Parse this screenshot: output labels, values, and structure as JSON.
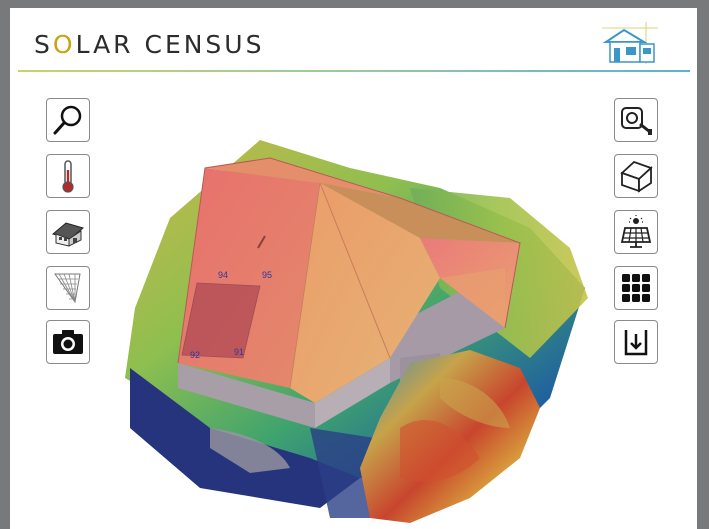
{
  "app": {
    "brand_part1": "S",
    "brand_o": "O",
    "brand_part2": "LAR CENSUS"
  },
  "left_tools": [
    {
      "name": "search-tool-button",
      "icon": "magnifier-icon"
    },
    {
      "name": "thermometer-tool-button",
      "icon": "thermometer-icon"
    },
    {
      "name": "house-3d-tool-button",
      "icon": "house-icon"
    },
    {
      "name": "net-tool-button",
      "icon": "net-icon"
    },
    {
      "name": "camera-tool-button",
      "icon": "camera-icon"
    }
  ],
  "right_tools": [
    {
      "name": "tape-measure-button",
      "icon": "tape-measure-icon"
    },
    {
      "name": "roof-outline-button",
      "icon": "roof-outline-icon"
    },
    {
      "name": "solar-panel-button",
      "icon": "solar-panel-icon"
    },
    {
      "name": "grid-view-button",
      "icon": "grid-icon"
    },
    {
      "name": "export-button",
      "icon": "export-icon"
    }
  ],
  "roof_labels": {
    "tl": "94",
    "tr": "95",
    "bl": "92",
    "br": "91"
  },
  "colors": {
    "accent_gold": "#c8a417",
    "rule_start": "#c9d36a",
    "rule_end": "#5ab3cf",
    "roof_pink": "#e8706e",
    "roof_orange": "#e8a563"
  }
}
